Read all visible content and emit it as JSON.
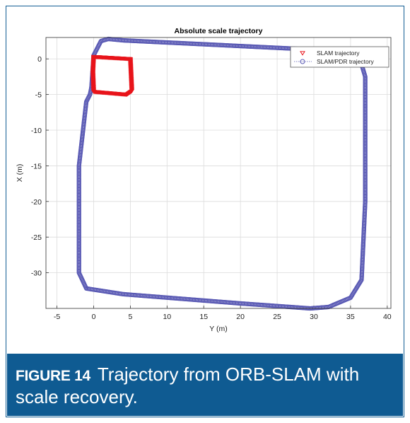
{
  "chart_data": {
    "type": "scatter",
    "title": "Absolute scale trajectory",
    "xlabel": "Y (m)",
    "ylabel": "X (m)",
    "xlim": [
      -6.5,
      40.5
    ],
    "ylim": [
      -35,
      3
    ],
    "xticks": [
      -5,
      0,
      5,
      10,
      15,
      20,
      25,
      30,
      35,
      40
    ],
    "yticks": [
      0,
      -5,
      -10,
      -15,
      -20,
      -25,
      -30
    ],
    "grid": true,
    "legend_position": "top-right",
    "series": [
      {
        "name": "SLAM trajectory",
        "marker": "triangle-down",
        "color": "#e8141b",
        "x": [
          0,
          5,
          5.2,
          4.5,
          0,
          -0.1,
          0
        ],
        "y": [
          0.3,
          0,
          -4.5,
          -5.0,
          -4.6,
          -2.0,
          0.3
        ]
      },
      {
        "name": "SLAM/PDR trajectory",
        "marker": "circle",
        "color": "#5a5ab4",
        "x": [
          -0.3,
          0,
          1.0,
          2.0,
          4.0,
          20,
          36.0,
          37.0,
          37.0,
          36.5,
          35.0,
          32.0,
          29.5,
          20,
          4.0,
          -1.0,
          -2.0,
          -2.0,
          -1.0,
          -0.5,
          -0.3
        ],
        "y": [
          -4.0,
          0.5,
          2.5,
          2.8,
          2.6,
          1.8,
          1.0,
          -2.5,
          -20,
          -31,
          -33.5,
          -34.8,
          -35.0,
          -34.3,
          -33.0,
          -32.2,
          -30.0,
          -15,
          -6.0,
          -5.0,
          -4.0
        ]
      }
    ]
  },
  "caption": {
    "label": "FIGURE 14",
    "line1": "Trajectory from ORB-SLAM with",
    "line2": "scale recovery."
  }
}
